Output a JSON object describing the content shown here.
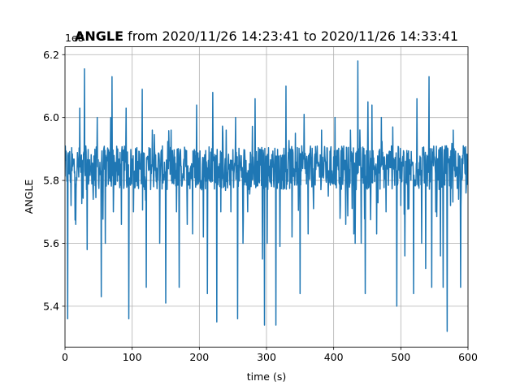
{
  "chart_data": {
    "type": "line",
    "title_bold": "ANGLE",
    "title_rest": " from 2020/11/26 14:23:41 to 2020/11/26 14:33:41",
    "xlabel": "time (s)",
    "ylabel": "ANGLE",
    "offset_label": "1e8",
    "xlim": [
      0,
      600
    ],
    "ylim": [
      5.27,
      6.225
    ],
    "x_ticks": [
      0,
      100,
      200,
      300,
      400,
      500,
      600
    ],
    "y_ticks": [
      5.4,
      5.6,
      5.8,
      6.0,
      6.2
    ],
    "x_tick_labels": [
      "0",
      "100",
      "200",
      "300",
      "400",
      "500",
      "600"
    ],
    "y_tick_labels": [
      "5.4",
      "5.6",
      "5.8",
      "6.0",
      "6.2"
    ],
    "grid": true,
    "series_color": "#1f77b4",
    "series": [
      {
        "baseline": 5.84,
        "noise_amplitude": 0.07,
        "spikes": [
          {
            "x": 4,
            "y": 5.36
          },
          {
            "x": 9,
            "y": 5.72
          },
          {
            "x": 16,
            "y": 5.66
          },
          {
            "x": 22,
            "y": 6.03
          },
          {
            "x": 29,
            "y": 6.155
          },
          {
            "x": 33,
            "y": 5.58
          },
          {
            "x": 42,
            "y": 5.74
          },
          {
            "x": 48,
            "y": 6.0
          },
          {
            "x": 54,
            "y": 5.43
          },
          {
            "x": 60,
            "y": 5.6
          },
          {
            "x": 68,
            "y": 6.0
          },
          {
            "x": 70,
            "y": 6.13
          },
          {
            "x": 72,
            "y": 5.7
          },
          {
            "x": 84,
            "y": 5.66
          },
          {
            "x": 91,
            "y": 6.03
          },
          {
            "x": 95,
            "y": 5.36
          },
          {
            "x": 102,
            "y": 5.7
          },
          {
            "x": 115,
            "y": 6.09
          },
          {
            "x": 121,
            "y": 5.46
          },
          {
            "x": 130,
            "y": 5.96
          },
          {
            "x": 141,
            "y": 5.6
          },
          {
            "x": 150,
            "y": 5.41
          },
          {
            "x": 158,
            "y": 5.96
          },
          {
            "x": 166,
            "y": 5.7
          },
          {
            "x": 170,
            "y": 5.46
          },
          {
            "x": 182,
            "y": 5.66
          },
          {
            "x": 190,
            "y": 5.63
          },
          {
            "x": 196,
            "y": 6.04
          },
          {
            "x": 206,
            "y": 5.62
          },
          {
            "x": 212,
            "y": 5.44
          },
          {
            "x": 220,
            "y": 6.08
          },
          {
            "x": 226,
            "y": 5.35
          },
          {
            "x": 232,
            "y": 5.7
          },
          {
            "x": 240,
            "y": 5.96
          },
          {
            "x": 247,
            "y": 5.7
          },
          {
            "x": 254,
            "y": 6.0
          },
          {
            "x": 257,
            "y": 5.36
          },
          {
            "x": 265,
            "y": 5.6
          },
          {
            "x": 272,
            "y": 5.7
          },
          {
            "x": 283,
            "y": 6.06
          },
          {
            "x": 294,
            "y": 5.55
          },
          {
            "x": 297,
            "y": 5.34
          },
          {
            "x": 301,
            "y": 5.6
          },
          {
            "x": 314,
            "y": 5.34
          },
          {
            "x": 320,
            "y": 5.59
          },
          {
            "x": 329,
            "y": 6.1
          },
          {
            "x": 338,
            "y": 5.62
          },
          {
            "x": 343,
            "y": 5.95
          },
          {
            "x": 350,
            "y": 5.44
          },
          {
            "x": 356,
            "y": 6.01
          },
          {
            "x": 362,
            "y": 5.63
          },
          {
            "x": 370,
            "y": 5.71
          },
          {
            "x": 382,
            "y": 5.96
          },
          {
            "x": 392,
            "y": 5.75
          },
          {
            "x": 402,
            "y": 6.0
          },
          {
            "x": 410,
            "y": 5.72
          },
          {
            "x": 418,
            "y": 5.66
          },
          {
            "x": 425,
            "y": 5.96
          },
          {
            "x": 430,
            "y": 5.63
          },
          {
            "x": 432,
            "y": 5.6
          },
          {
            "x": 436,
            "y": 6.18
          },
          {
            "x": 441,
            "y": 5.6
          },
          {
            "x": 447,
            "y": 5.44
          },
          {
            "x": 451,
            "y": 6.05
          },
          {
            "x": 457,
            "y": 6.04
          },
          {
            "x": 464,
            "y": 5.63
          },
          {
            "x": 471,
            "y": 6.0
          },
          {
            "x": 478,
            "y": 5.7
          },
          {
            "x": 488,
            "y": 5.97
          },
          {
            "x": 494,
            "y": 5.4
          },
          {
            "x": 500,
            "y": 5.72
          },
          {
            "x": 506,
            "y": 5.56
          },
          {
            "x": 512,
            "y": 5.71
          },
          {
            "x": 519,
            "y": 5.44
          },
          {
            "x": 524,
            "y": 6.06
          },
          {
            "x": 531,
            "y": 5.6
          },
          {
            "x": 537,
            "y": 5.52
          },
          {
            "x": 542,
            "y": 6.13
          },
          {
            "x": 546,
            "y": 5.46
          },
          {
            "x": 552,
            "y": 5.7
          },
          {
            "x": 559,
            "y": 5.56
          },
          {
            "x": 563,
            "y": 5.46
          },
          {
            "x": 566,
            "y": 5.91
          },
          {
            "x": 569,
            "y": 5.32
          },
          {
            "x": 574,
            "y": 5.72
          },
          {
            "x": 578,
            "y": 5.96
          },
          {
            "x": 586,
            "y": 5.74
          },
          {
            "x": 589,
            "y": 5.46
          },
          {
            "x": 593,
            "y": 5.91
          },
          {
            "x": 597,
            "y": 5.76
          }
        ]
      }
    ]
  }
}
